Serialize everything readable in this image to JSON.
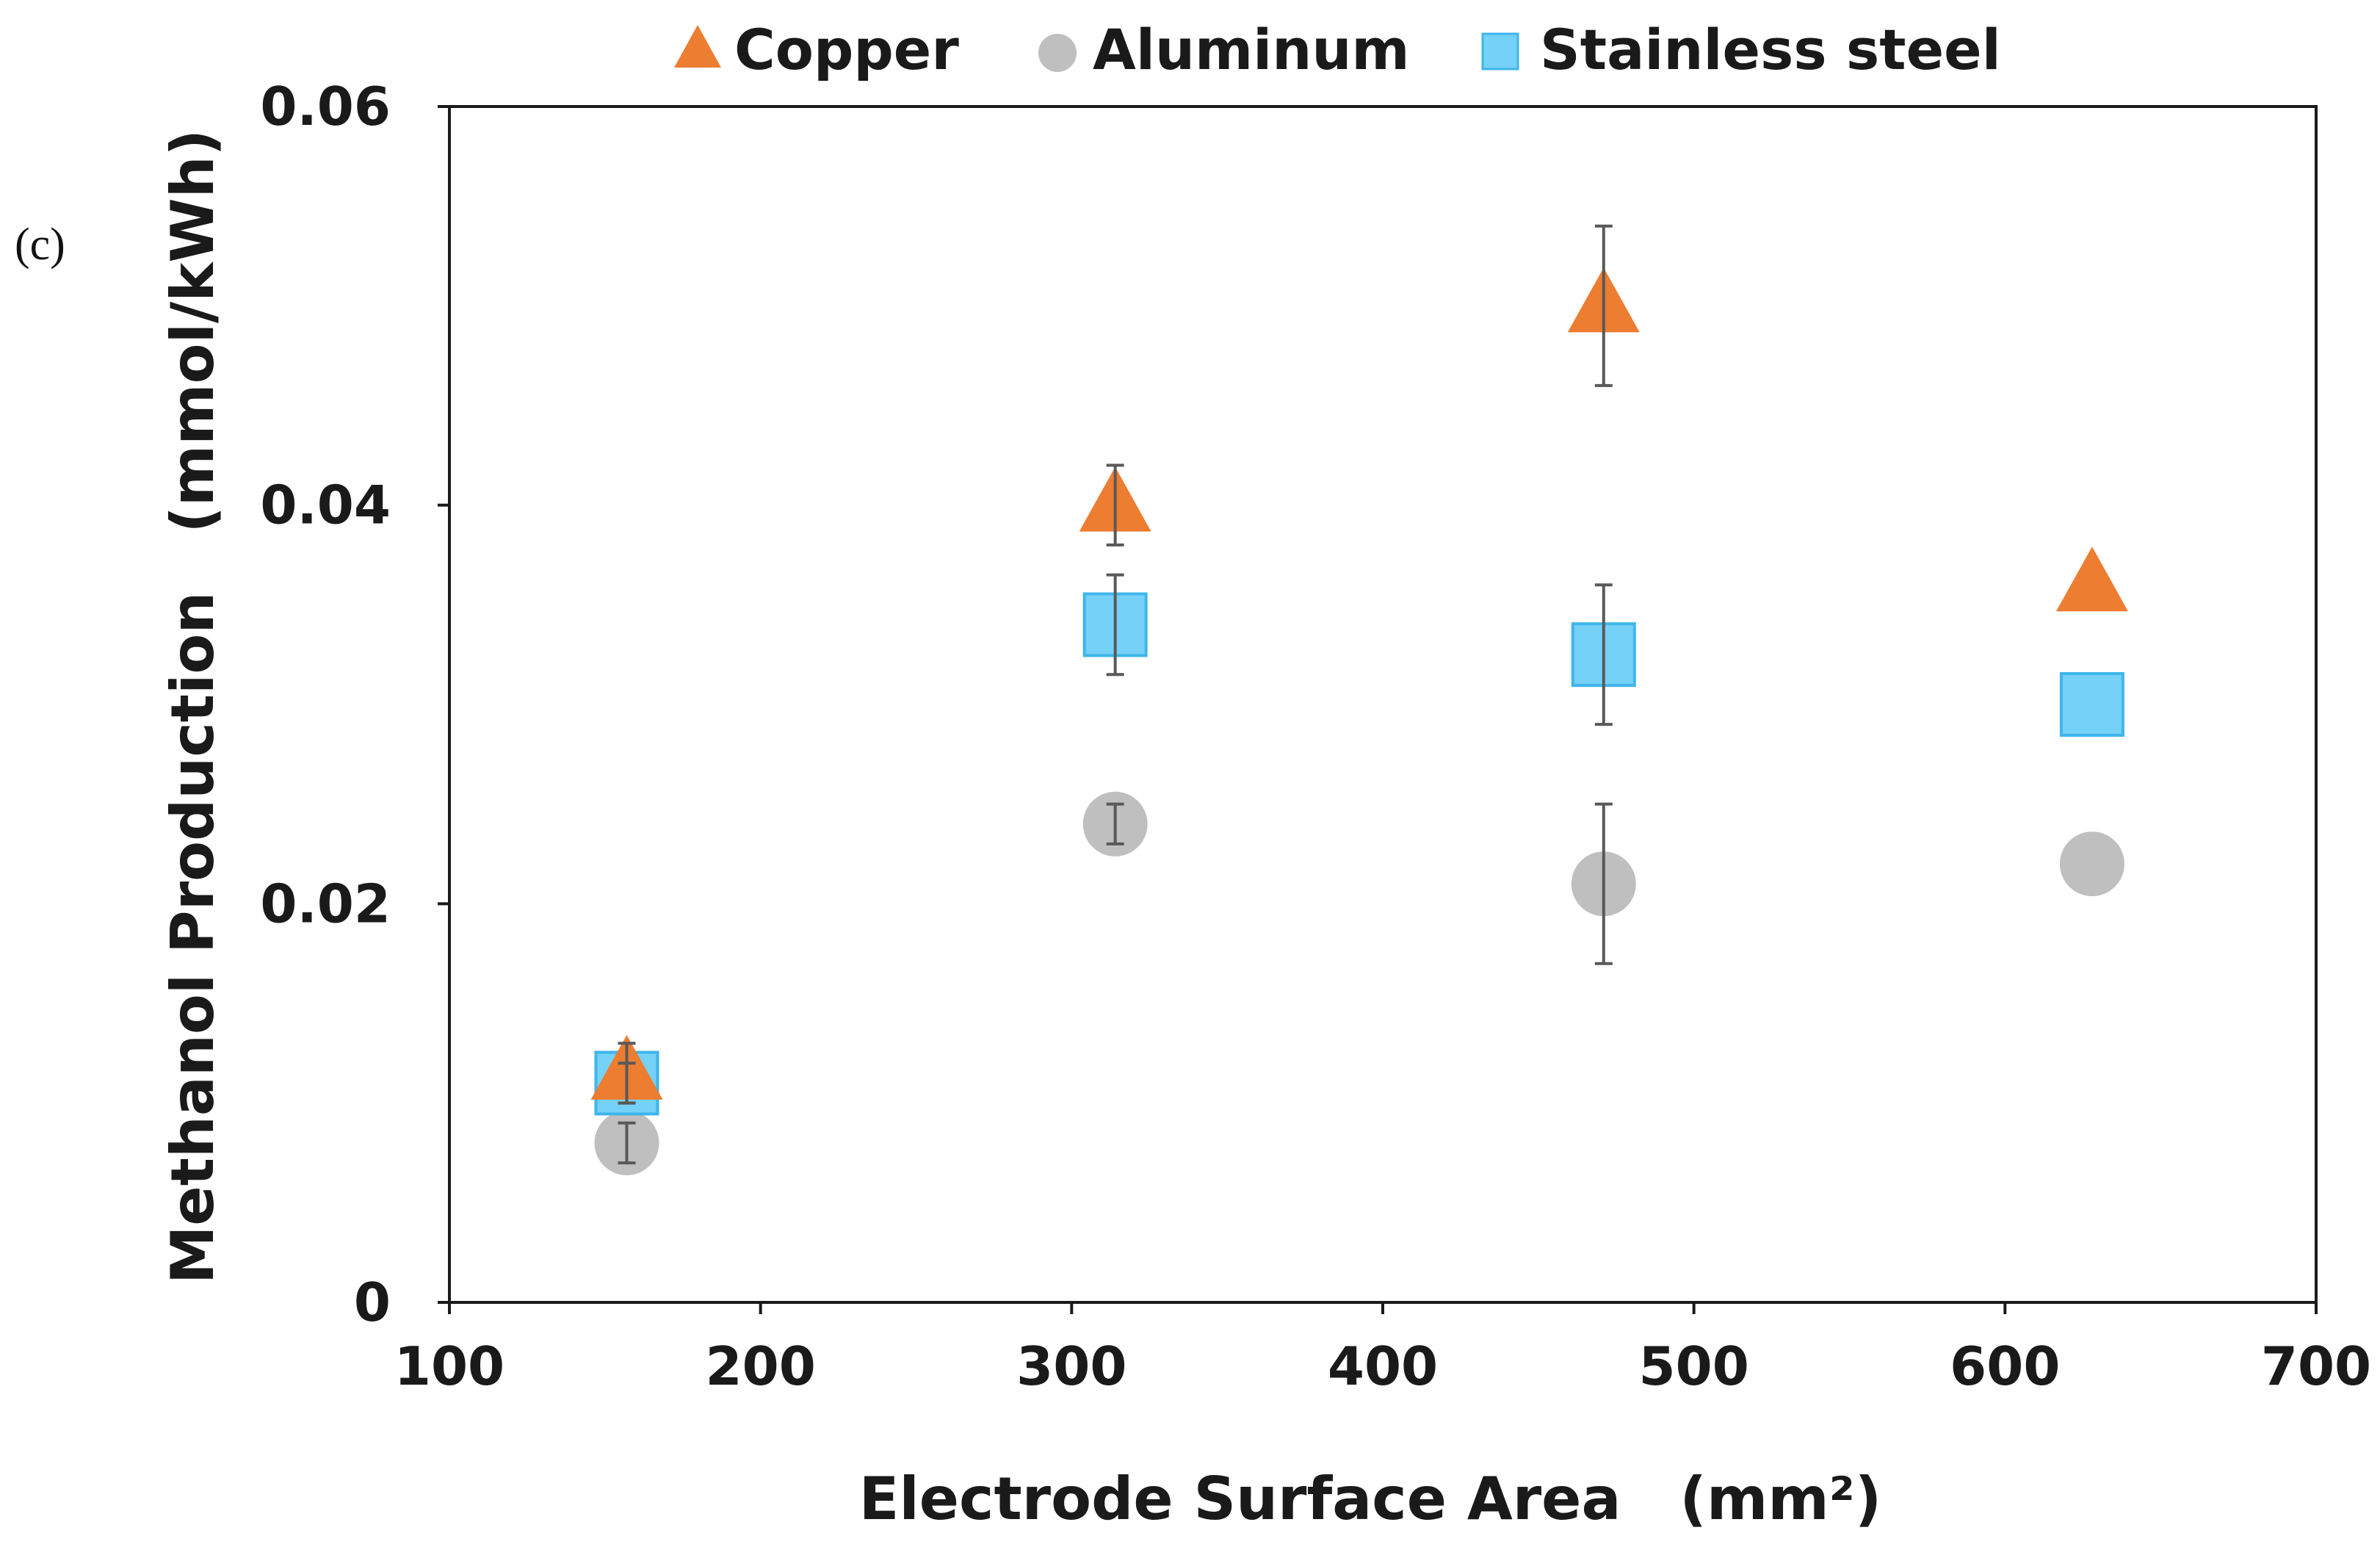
{
  "panel_label": "(c)",
  "chart_data": {
    "type": "scatter",
    "title": "",
    "xlabel": "Electrode Surface Area　(mm²)",
    "ylabel": "Methanol Production　(mmol/kWh)",
    "xlim": [
      100,
      700
    ],
    "ylim": [
      0,
      0.06
    ],
    "xticks": [
      100,
      200,
      300,
      400,
      500,
      600,
      700
    ],
    "yticks": [
      0,
      0.02,
      0.04,
      0.06
    ],
    "xtick_labels": [
      "100",
      "200",
      "300",
      "400",
      "500",
      "600",
      "700"
    ],
    "ytick_labels": [
      "0",
      "0.02",
      "0.04",
      "0.06"
    ],
    "grid": false,
    "legend_position": "top-center",
    "series": [
      {
        "name": "Copper",
        "marker": "triangle",
        "color": "#ED7D31",
        "points": [
          {
            "x": 157,
            "y": 0.0115,
            "err": 0.0015
          },
          {
            "x": 314,
            "y": 0.04,
            "err": 0.002
          },
          {
            "x": 471,
            "y": 0.05,
            "err": 0.004
          },
          {
            "x": 628,
            "y": 0.036,
            "err": 0
          }
        ]
      },
      {
        "name": "Aluminum",
        "marker": "circle",
        "color": "#BFBFBF",
        "points": [
          {
            "x": 157,
            "y": 0.008,
            "err": 0.001
          },
          {
            "x": 314,
            "y": 0.024,
            "err": 0.001
          },
          {
            "x": 471,
            "y": 0.021,
            "err": 0.004
          },
          {
            "x": 628,
            "y": 0.022,
            "err": 0
          }
        ]
      },
      {
        "name": "Stainless steel",
        "marker": "square",
        "color": "#75D1F7",
        "edge_color": "#3FB5EC",
        "points": [
          {
            "x": 157,
            "y": 0.011,
            "err": 0.001
          },
          {
            "x": 314,
            "y": 0.034,
            "err": 0.0025
          },
          {
            "x": 471,
            "y": 0.0325,
            "err": 0.0035
          },
          {
            "x": 628,
            "y": 0.03,
            "err": 0
          }
        ]
      }
    ]
  }
}
